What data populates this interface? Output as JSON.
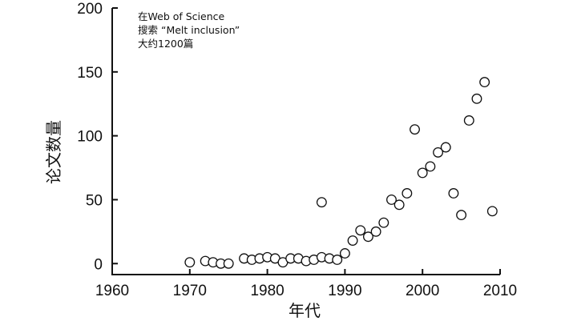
{
  "chart_data": {
    "type": "scatter",
    "title": "",
    "xlabel": "年代",
    "ylabel": "论文数量",
    "xlim": [
      1960,
      2010
    ],
    "ylim": [
      0,
      200
    ],
    "x_ticks": [
      "1960",
      "1970",
      "1980",
      "1990",
      "2000",
      "2010"
    ],
    "y_ticks": [
      "0",
      "50",
      "100",
      "150",
      "200"
    ],
    "grid": false,
    "annotation": [
      "在Web of Science",
      "搜索 “Melt inclusion”",
      "大约1200篇"
    ],
    "marker": "open-circle",
    "series": [
      {
        "points": [
          [
            1970,
            1
          ],
          [
            1972,
            2
          ],
          [
            1973,
            1
          ],
          [
            1974,
            0
          ],
          [
            1975,
            0
          ],
          [
            1977,
            4
          ],
          [
            1978,
            3
          ],
          [
            1979,
            4
          ],
          [
            1980,
            5
          ],
          [
            1981,
            4
          ],
          [
            1982,
            1
          ],
          [
            1983,
            4
          ],
          [
            1984,
            4
          ],
          [
            1985,
            2
          ],
          [
            1986,
            3
          ],
          [
            1987,
            48
          ],
          [
            1987,
            5
          ],
          [
            1988,
            4
          ],
          [
            1989,
            3
          ],
          [
            1990,
            8
          ],
          [
            1991,
            18
          ],
          [
            1992,
            26
          ],
          [
            1993,
            21
          ],
          [
            1994,
            25
          ],
          [
            1995,
            32
          ],
          [
            1996,
            50
          ],
          [
            1997,
            46
          ],
          [
            1998,
            55
          ],
          [
            1999,
            105
          ],
          [
            2000,
            71
          ],
          [
            2001,
            76
          ],
          [
            2002,
            87
          ],
          [
            2003,
            91
          ],
          [
            2004,
            55
          ],
          [
            2005,
            38
          ],
          [
            2006,
            112
          ],
          [
            2007,
            129
          ],
          [
            2008,
            142
          ],
          [
            2009,
            41
          ]
        ]
      }
    ]
  }
}
